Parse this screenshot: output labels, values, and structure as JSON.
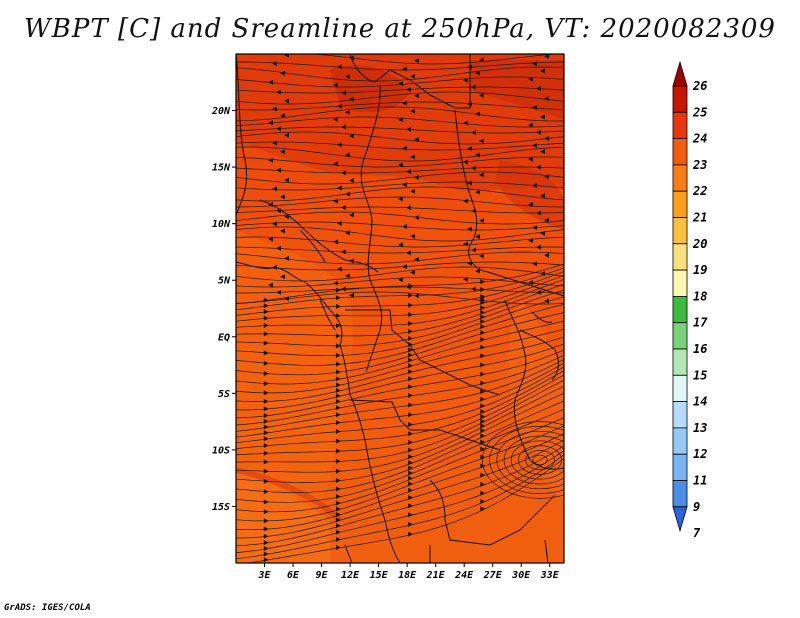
{
  "title": "WBPT [C] and Sreamline at 250hPa, VT: 2020082309",
  "credit": "GrADS: IGES/COLA",
  "map": {
    "lat_labels": [
      "20N",
      "15N",
      "10N",
      "5N",
      "EQ",
      "5S",
      "10S",
      "15S"
    ],
    "lat_values": [
      20,
      15,
      10,
      5,
      0,
      -5,
      -10,
      -15
    ],
    "lon_labels": [
      "3E",
      "6E",
      "9E",
      "12E",
      "15E",
      "18E",
      "21E",
      "24E",
      "27E",
      "30E",
      "33E"
    ],
    "lon_values": [
      3,
      6,
      9,
      12,
      15,
      18,
      21,
      24,
      27,
      30,
      33
    ],
    "lon_range": [
      0,
      34.5
    ],
    "lat_range": [
      -20,
      25
    ],
    "colors": {
      "base_orange": "#f25c0c",
      "dark_red": "#d8260a",
      "light_orange": "#f77216",
      "streamline": "#1a1a1a",
      "boundary": "#111111"
    }
  },
  "colorbar": {
    "labels": [
      "26",
      "25",
      "24",
      "23",
      "22",
      "21",
      "20",
      "19",
      "18",
      "17",
      "16",
      "15",
      "14",
      "13",
      "12",
      "11",
      "9",
      "7"
    ],
    "colors": [
      "#a50000",
      "#c81400",
      "#e8360a",
      "#f25c0c",
      "#fa7c14",
      "#fca01c",
      "#fcc03c",
      "#fce07c",
      "#fcf8b0",
      "#3cbc3c",
      "#78d278",
      "#b4e6b4",
      "#e0f8f8",
      "#b4dcfc",
      "#96c8f8",
      "#78b4f4",
      "#4a8ee8",
      "#2864dc"
    ]
  }
}
